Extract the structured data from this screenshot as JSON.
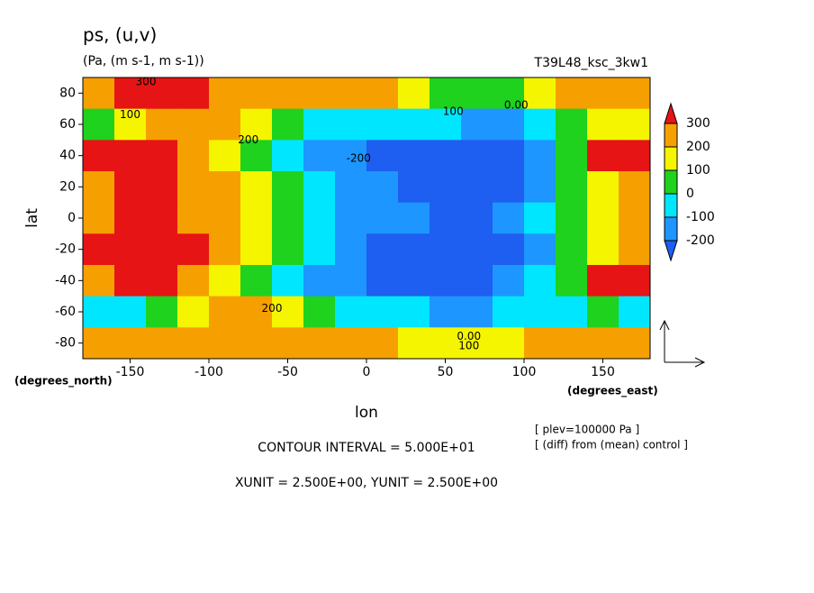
{
  "chart_data": {
    "type": "contour",
    "title": "ps, (u,v)",
    "subtitle": "(Pa, (m s-1, m s-1))",
    "run_label": "T39L48_ksc_3kw1",
    "ylabel": "lat",
    "xlabel": "lon",
    "yunit": "(degrees_north)",
    "xunit": "(degrees_east)",
    "notes": [
      "[ plev=100000 Pa ]",
      "[ (diff) from (mean) control ]"
    ],
    "footer": [
      "CONTOUR INTERVAL = 5.000E+01",
      "XUNIT = 2.500E+00, YUNIT = 2.500E+00"
    ],
    "xlim": [
      -180,
      180
    ],
    "ylim": [
      -90,
      90
    ],
    "xticks": [
      -150,
      -100,
      -50,
      0,
      50,
      100,
      150
    ],
    "yticks": [
      -80,
      -60,
      -40,
      -20,
      0,
      20,
      40,
      60,
      80
    ],
    "x": [
      -170,
      -150,
      -130,
      -110,
      -90,
      -70,
      -50,
      -30,
      -10,
      10,
      30,
      50,
      70,
      90,
      110,
      130,
      150,
      170
    ],
    "y": [
      80,
      60,
      40,
      20,
      0,
      -20,
      -40,
      -60,
      -80
    ],
    "z": [
      [
        200,
        350,
        350,
        350,
        250,
        250,
        250,
        250,
        250,
        250,
        150,
        50,
        50,
        50,
        150,
        250,
        250,
        250
      ],
      [
        50,
        150,
        250,
        250,
        250,
        150,
        50,
        -50,
        -50,
        -50,
        -50,
        -50,
        -150,
        -150,
        -50,
        50,
        150,
        150
      ],
      [
        350,
        350,
        350,
        250,
        150,
        50,
        -50,
        -150,
        -150,
        -250,
        -250,
        -250,
        -250,
        -250,
        -150,
        50,
        350,
        350
      ],
      [
        250,
        350,
        350,
        250,
        250,
        150,
        50,
        -50,
        -150,
        -150,
        -250,
        -250,
        -250,
        -250,
        -150,
        50,
        150,
        250
      ],
      [
        250,
        350,
        350,
        250,
        250,
        150,
        50,
        -50,
        -150,
        -150,
        -150,
        -250,
        -250,
        -150,
        -50,
        50,
        150,
        250
      ],
      [
        350,
        350,
        350,
        350,
        250,
        150,
        50,
        -50,
        -150,
        -250,
        -250,
        -250,
        -250,
        -250,
        -150,
        50,
        150,
        250
      ],
      [
        250,
        350,
        350,
        250,
        150,
        50,
        -50,
        -150,
        -150,
        -250,
        -250,
        -250,
        -250,
        -150,
        -50,
        50,
        350,
        350
      ],
      [
        -50,
        -50,
        50,
        150,
        250,
        250,
        150,
        50,
        -50,
        -50,
        -50,
        -150,
        -150,
        -50,
        -50,
        -50,
        50,
        -50
      ],
      [
        250,
        250,
        250,
        250,
        250,
        250,
        250,
        250,
        250,
        250,
        150,
        150,
        150,
        150,
        250,
        250,
        250,
        250
      ]
    ],
    "levels": [
      -200,
      -100,
      0,
      100,
      200,
      300
    ],
    "colors": [
      "#1e5ef0",
      "#1e96ff",
      "#00e6ff",
      "#1ed21e",
      "#f5f500",
      "#f5a000",
      "#e61414"
    ],
    "contour_labels": [
      {
        "value": 300,
        "label": "300",
        "lon": -140,
        "lat": 87
      },
      {
        "value": 100,
        "label": "100",
        "lon": -150,
        "lat": 66
      },
      {
        "value": 200,
        "label": "200",
        "lon": -75,
        "lat": 50
      },
      {
        "value": 100,
        "label": "100",
        "lon": 55,
        "lat": 68
      },
      {
        "value": 0,
        "label": "0.00",
        "lon": 95,
        "lat": 72
      },
      {
        "value": -200,
        "label": "-200",
        "lon": -5,
        "lat": 38
      },
      {
        "value": 200,
        "label": "200",
        "lon": -60,
        "lat": -58
      },
      {
        "value": 0,
        "label": "0.00",
        "lon": 65,
        "lat": -76
      },
      {
        "value": 100,
        "label": "100",
        "lon": 65,
        "lat": -82
      }
    ]
  }
}
